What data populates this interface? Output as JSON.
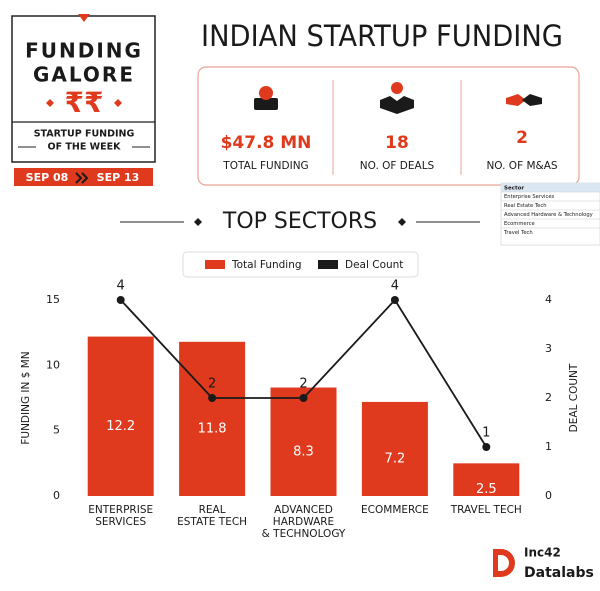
{
  "badge": {
    "line1": "FUNDING",
    "line2": "GALORE",
    "symbol": "₹₹",
    "sub1": "STARTUP FUNDING",
    "sub2": "OF THE WEEK",
    "date_from": "SEP 08",
    "date_to": "SEP 13"
  },
  "title": "INDIAN STARTUP FUNDING",
  "stats": [
    {
      "value": "$47.8 MN",
      "label": "TOTAL FUNDING"
    },
    {
      "value": "18",
      "label": "NO. OF DEALS"
    },
    {
      "value": "2",
      "label": "NO. OF M&AS"
    }
  ],
  "table": {
    "header": "Sector",
    "rows": [
      "Enterprise Services",
      "Real Estate Tech",
      "Advanced Hardware & Technology",
      "Ecommerce",
      "Travel Tech"
    ]
  },
  "logo": {
    "line1": "Inc42",
    "line2": "Datalabs"
  },
  "chart_data": {
    "type": "bar",
    "title": "TOP SECTORS",
    "categories": [
      "ENTERPRISE\nSERVICES",
      "REAL\nESTATE TECH",
      "ADVANCED\nHARDWARE\n& TECHNOLOGY",
      "ECOMMERCE",
      "TRAVEL TECH"
    ],
    "series": [
      {
        "name": "Total Funding",
        "type": "bar",
        "color": "#e03a1e",
        "values": [
          12.2,
          11.8,
          8.3,
          7.2,
          2.5
        ]
      },
      {
        "name": "Deal Count",
        "type": "line",
        "axis": "y2",
        "color": "#1a1a1a",
        "values": [
          4,
          2,
          2,
          4,
          1
        ]
      }
    ],
    "ylabel": "FUNDING IN $ MN",
    "y2label": "DEAL COUNT",
    "ylim": [
      0,
      15
    ],
    "yticks": [
      0,
      5,
      10,
      15
    ],
    "y2lim": [
      0,
      4
    ],
    "y2ticks": [
      0,
      1,
      2,
      3,
      4
    ],
    "grid": false,
    "legend": "top"
  }
}
